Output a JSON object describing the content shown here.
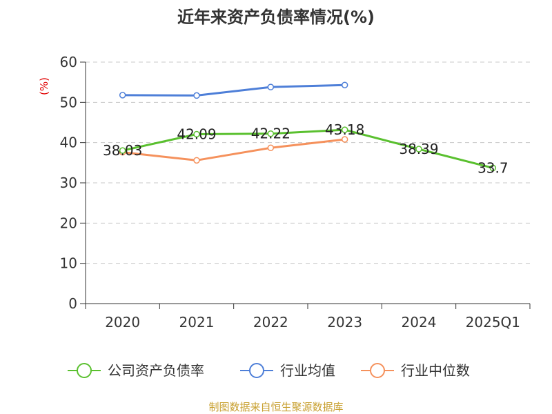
{
  "chart_data": {
    "type": "line",
    "title": "近年来资产负债率情况(%)",
    "ylabel": "(%)",
    "xlabel": "",
    "categories": [
      "2020",
      "2021",
      "2022",
      "2023",
      "2024",
      "2025Q1"
    ],
    "ylim": [
      0,
      60
    ],
    "yticks": [
      0,
      10,
      20,
      30,
      40,
      50,
      60
    ],
    "grid": true,
    "legend_position": "bottom",
    "series": [
      {
        "name": "公司资产负债率",
        "color": "#5ac02f",
        "values": [
          38.03,
          42.09,
          42.22,
          43.18,
          38.39,
          33.7
        ],
        "labels": [
          "38.03",
          "42.09",
          "42.22",
          "43.18",
          "38.39",
          "33.7"
        ]
      },
      {
        "name": "行业均值",
        "color": "#4e7fd8",
        "values": [
          51.8,
          51.7,
          53.8,
          54.3,
          null,
          null
        ]
      },
      {
        "name": "行业中位数",
        "color": "#f5915c",
        "values": [
          37.6,
          35.6,
          38.7,
          40.8,
          null,
          null
        ]
      }
    ],
    "source": "制图数据来自恒生聚源数据库"
  }
}
